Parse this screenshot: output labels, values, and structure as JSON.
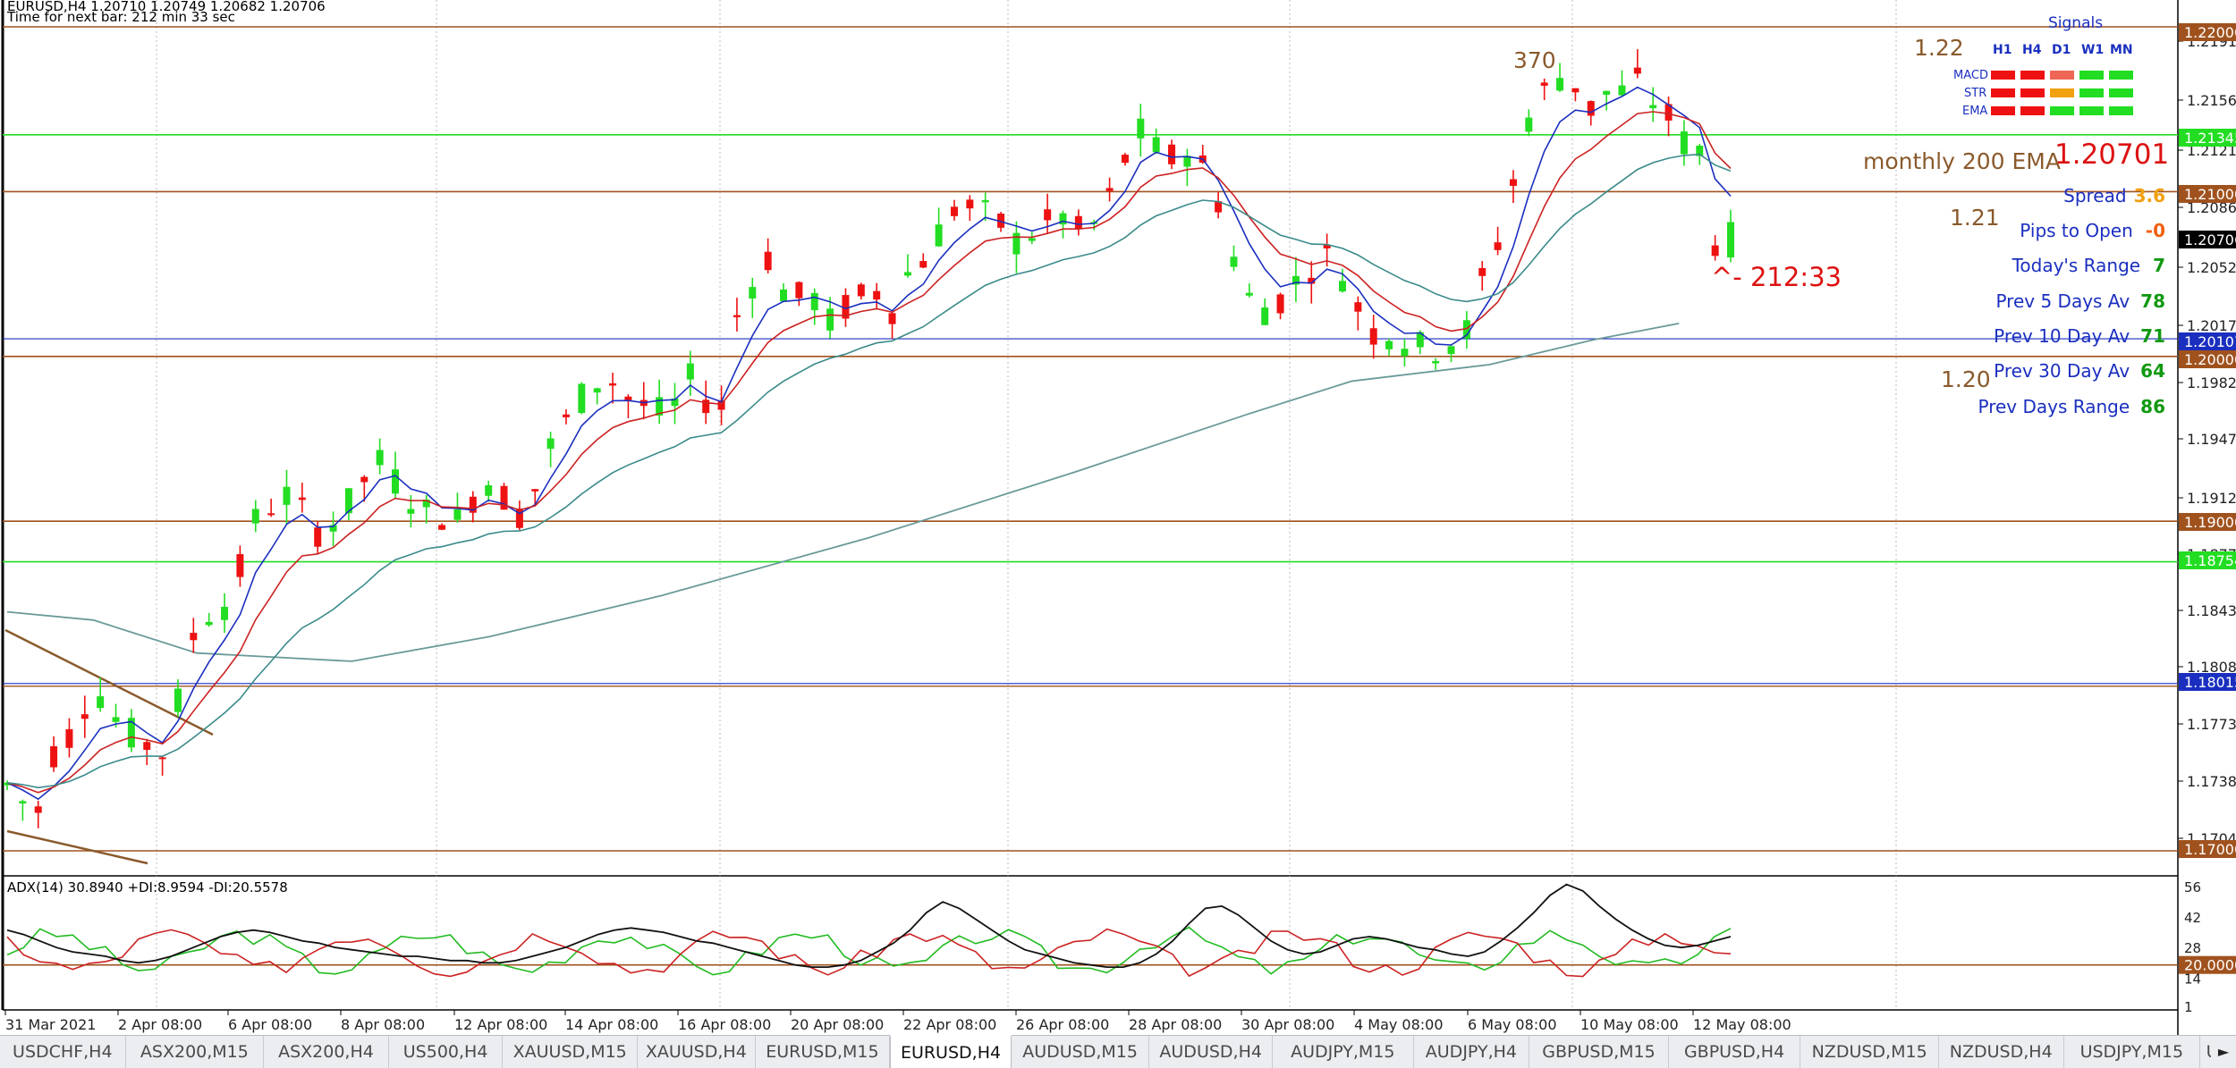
{
  "header": {
    "symbol_line": "EURUSD,H4  1.20710 1.20749 1.20682 1.20706",
    "timer_line": "Time for next bar: 212 min 33 sec"
  },
  "price_axis": {
    "ticks": [
      "1.21910",
      "1.21560",
      "1.21215",
      "1.20865",
      "1.20525",
      "1.20170",
      "1.19825",
      "1.19475",
      "1.19125",
      "1.18775",
      "1.18430",
      "1.18080",
      "1.17735",
      "1.17385",
      "1.17040"
    ],
    "badges": [
      {
        "label": "1.22000",
        "color": "#a0521e"
      },
      {
        "label": "1.21345",
        "color": "#22dd22"
      },
      {
        "label": "1.21000",
        "color": "#a0521e"
      },
      {
        "label": "1.20706",
        "color": "#000000"
      },
      {
        "label": "1.20107",
        "color": "#1a2fbf"
      },
      {
        "label": "1.20000",
        "color": "#a0521e"
      },
      {
        "label": "1.19000",
        "color": "#a0521e"
      },
      {
        "label": "1.18754",
        "color": "#22dd22"
      },
      {
        "label": "1.18015",
        "color": "#1a2fbf"
      },
      {
        "label": "1.17000",
        "color": "#a0521e"
      }
    ]
  },
  "annotations": {
    "level_122": "1.22",
    "level_121": "1.21",
    "level_120": "1.20",
    "pips_370": "370",
    "monthly_label": "monthly 200 EMA",
    "monthly_value": "1.20701",
    "countdown": "^- 212:33"
  },
  "signals": {
    "title": "Signals",
    "columns": [
      "H1",
      "H4",
      "D1",
      "W1",
      "MN"
    ],
    "rows": [
      {
        "name": "MACD",
        "colors": [
          "#ee1111",
          "#ee1111",
          "#ee6655",
          "#22dd22",
          "#22dd22"
        ]
      },
      {
        "name": "STR",
        "colors": [
          "#ee1111",
          "#ee1111",
          "#f0a010",
          "#22dd22",
          "#22dd22"
        ]
      },
      {
        "name": "EMA",
        "colors": [
          "#ee1111",
          "#ee1111",
          "#22dd22",
          "#22dd22",
          "#22dd22"
        ]
      }
    ]
  },
  "stats": [
    {
      "label": "Spread",
      "value": "3.6",
      "value_color": "#f0a010"
    },
    {
      "label": "Pips to Open",
      "value": "-0",
      "value_color": "#f06010"
    },
    {
      "label": "Today's Range",
      "value": "7",
      "value_color": "#119911"
    },
    {
      "label": "Prev 5 Days Av",
      "value": "78",
      "value_color": "#119911"
    },
    {
      "label": "Prev 10 Day Av",
      "value": "71",
      "value_color": "#119911"
    },
    {
      "label": "Prev 30 Day Av",
      "value": "64",
      "value_color": "#119911"
    },
    {
      "label": "Prev Days Range",
      "value": "86",
      "value_color": "#119911"
    }
  ],
  "indicator": {
    "title": "ADX(14) 30.8940 +DI:8.9594 -DI:20.5578",
    "ticks": [
      "56",
      "42",
      "28",
      "14",
      "1"
    ],
    "badge": "20.0000"
  },
  "time_axis": [
    "31 Mar 2021",
    "2 Apr 08:00",
    "6 Apr 08:00",
    "8 Apr 08:00",
    "12 Apr 08:00",
    "14 Apr 08:00",
    "16 Apr 08:00",
    "20 Apr 08:00",
    "22 Apr 08:00",
    "26 Apr 08:00",
    "28 Apr 08:00",
    "30 Apr 08:00",
    "4 May 08:00",
    "6 May 08:00",
    "10 May 08:00",
    "12 May 08:00"
  ],
  "tabs": [
    {
      "label": "USDCHF,H4",
      "active": false
    },
    {
      "label": "ASX200,M15",
      "active": false
    },
    {
      "label": "ASX200,H4",
      "active": false
    },
    {
      "label": "US500,H4",
      "active": false
    },
    {
      "label": "XAUUSD,M15",
      "active": false
    },
    {
      "label": "XAUUSD,H4",
      "active": false
    },
    {
      "label": "EURUSD,M15",
      "active": false
    },
    {
      "label": "EURUSD,H4",
      "active": true
    },
    {
      "label": "AUDUSD,M15",
      "active": false
    },
    {
      "label": "AUDUSD,H4",
      "active": false
    },
    {
      "label": "AUDJPY,M15",
      "active": false
    },
    {
      "label": "AUDJPY,H4",
      "active": false
    },
    {
      "label": "GBPUSD,M15",
      "active": false
    },
    {
      "label": "GBPUSD,H4",
      "active": false
    },
    {
      "label": "NZDUSD,M15",
      "active": false
    },
    {
      "label": "NZDUSD,H4",
      "active": false
    },
    {
      "label": "USDJPY,M15",
      "active": false
    },
    {
      "label": "US",
      "active": false
    }
  ],
  "chart_data": {
    "type": "candlestick",
    "symbol": "EURUSD",
    "timeframe": "H4",
    "ylim": [
      1.1675,
      1.22
    ],
    "close_path": [
      1.174,
      1.173,
      1.1725,
      1.176,
      1.177,
      1.179,
      1.1795,
      1.178,
      1.177,
      1.1765,
      1.176,
      1.179,
      1.183,
      1.1845,
      1.185,
      1.187,
      1.19,
      1.191,
      1.1915,
      1.1905,
      1.1895,
      1.19,
      1.191,
      1.1925,
      1.1935,
      1.1925,
      1.1915,
      1.1905,
      1.1905,
      1.19,
      1.1915,
      1.1925,
      1.1915,
      1.1905,
      1.192,
      1.1945,
      1.196,
      1.1975,
      1.1985,
      1.1985,
      1.1975,
      1.197,
      1.1965,
      1.197,
      1.1985,
      1.1975,
      1.197,
      1.2025,
      1.2045,
      1.206,
      1.204,
      1.2035,
      1.2035,
      1.202,
      1.203,
      1.2035,
      1.204,
      1.203,
      1.205,
      1.206,
      1.2075,
      1.209,
      1.209,
      1.2085,
      1.208,
      1.207,
      1.2075,
      1.208,
      1.2085,
      1.2075,
      1.208,
      1.2095,
      1.212,
      1.2135,
      1.2125,
      1.212,
      1.2125,
      1.2115,
      1.2095,
      1.206,
      1.2035,
      1.203,
      1.2035,
      1.2045,
      1.2055,
      1.206,
      1.205,
      1.203,
      1.2015,
      1.2015,
      1.201,
      1.2005,
      1.2005,
      1.201,
      1.2015,
      1.2045,
      1.207,
      1.2105,
      1.2145,
      1.216,
      1.217,
      1.2165,
      1.215,
      1.216,
      1.216,
      1.2165,
      1.2155,
      1.2145,
      1.213,
      1.2125,
      1.207,
      1.2071
    ],
    "ema200": [
      [
        1.1845,
        0
      ],
      [
        1.184,
        0.05
      ],
      [
        1.182,
        0.11
      ],
      [
        1.1815,
        0.2
      ],
      [
        1.183,
        0.28
      ],
      [
        1.1855,
        0.38
      ],
      [
        1.189,
        0.5
      ],
      [
        1.193,
        0.62
      ],
      [
        1.1965,
        0.72
      ],
      [
        1.1985,
        0.78
      ],
      [
        1.1995,
        0.86
      ],
      [
        1.201,
        0.92
      ],
      [
        1.202,
        0.97
      ]
    ],
    "hlines": [
      {
        "price": 1.22,
        "color": "#a0521e"
      },
      {
        "price": 1.21345,
        "color": "#22dd22"
      },
      {
        "price": 1.21,
        "color": "#a0521e"
      },
      {
        "price": 1.20107,
        "color": "#1a2fbf"
      },
      {
        "price": 1.2,
        "color": "#a0521e"
      },
      {
        "price": 1.19,
        "color": "#a0521e"
      },
      {
        "price": 1.18754,
        "color": "#22dd22"
      },
      {
        "price": 1.18015,
        "color": "#1a2fbf"
      },
      {
        "price": 1.17,
        "color": "#a0521e"
      }
    ],
    "adx": {
      "ylim": [
        1,
        56
      ],
      "level": 20,
      "adx_line": [
        36,
        34,
        31,
        28,
        26,
        25,
        24,
        22,
        21,
        22,
        24,
        27,
        30,
        33,
        35,
        36,
        35,
        33,
        31,
        30,
        28,
        27,
        26,
        25,
        24,
        24,
        23,
        22,
        22,
        21,
        21,
        22,
        24,
        26,
        28,
        31,
        34,
        36,
        37,
        36,
        35,
        33,
        31,
        30,
        28,
        26,
        24,
        22,
        20,
        19,
        19,
        20,
        22,
        26,
        30,
        36,
        44,
        49,
        46,
        41,
        36,
        31,
        27,
        25,
        23,
        21,
        20,
        19,
        19,
        21,
        25,
        31,
        39,
        46,
        47,
        43,
        37,
        31,
        27,
        25,
        26,
        29,
        32,
        33,
        32,
        30,
        28,
        27,
        25,
        24,
        26,
        31,
        37,
        44,
        52,
        57,
        54,
        47,
        41,
        36,
        32,
        29,
        28,
        29,
        31,
        33
      ]
    },
    "series": [
      {
        "name": "+DI",
        "color": "#22bb22"
      },
      {
        "name": "-DI",
        "color": "#cc2222"
      },
      {
        "name": "ADX",
        "color": "#111111"
      }
    ]
  }
}
